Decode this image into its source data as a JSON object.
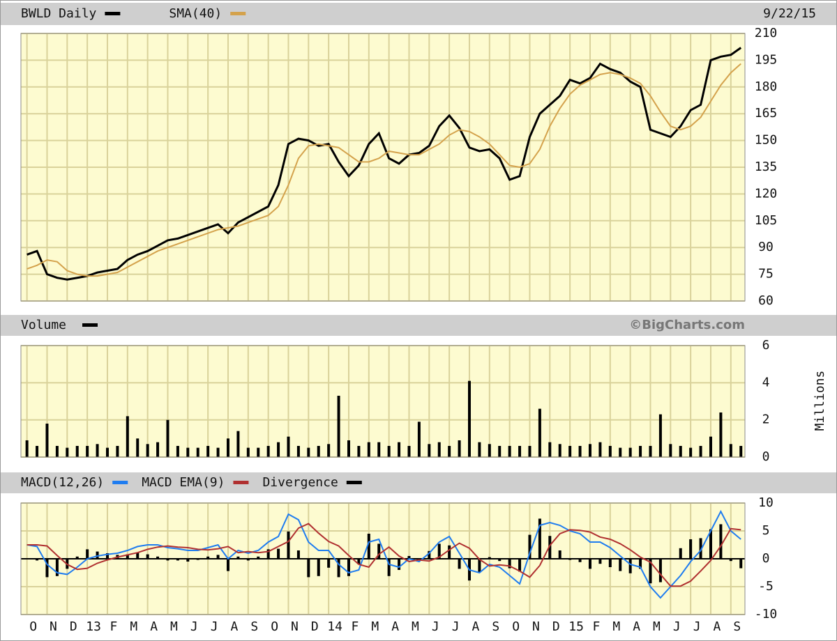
{
  "chart_data": [
    {
      "type": "line",
      "title": "BWLD Daily",
      "date": "9/22/15",
      "x": [
        0,
        0.5,
        1,
        1.5,
        2,
        2.5,
        3,
        3.5,
        4,
        4.5,
        5,
        5.5,
        6,
        6.5,
        7,
        7.5,
        8,
        8.5,
        9,
        9.5,
        10,
        10.5,
        11,
        11.5,
        12,
        12.5,
        13,
        13.5,
        14,
        14.5,
        15,
        15.5,
        16,
        16.5,
        17,
        17.5,
        18,
        18.5,
        19,
        19.5,
        20,
        20.5,
        21,
        21.5,
        22,
        22.5,
        23,
        23.5,
        24,
        24.5,
        25,
        25.5,
        26,
        26.5,
        27,
        27.5,
        28,
        28.5,
        29,
        29.5,
        30,
        30.5,
        31,
        31.5,
        32,
        32.5,
        33,
        33.5,
        34,
        34.5,
        35,
        35.5
      ],
      "xlim": [
        -0.3,
        35.7
      ],
      "ylim": [
        60,
        210
      ],
      "yticks": [
        60,
        75,
        90,
        105,
        120,
        135,
        150,
        165,
        180,
        195,
        210
      ],
      "grid": true,
      "series": [
        {
          "name": "BWLD Daily",
          "color": "#000000",
          "values": [
            86,
            88,
            75,
            73,
            72,
            73,
            74,
            76,
            77,
            78,
            83,
            86,
            88,
            91,
            94,
            95,
            97,
            99,
            101,
            103,
            98,
            104,
            107,
            110,
            113,
            125,
            148,
            151,
            150,
            147,
            148,
            138,
            130,
            136,
            148,
            154,
            140,
            137,
            142,
            143,
            147,
            158,
            164,
            157,
            146,
            144,
            145,
            140,
            128,
            130,
            152,
            165,
            170,
            175,
            184,
            182,
            185,
            193,
            190,
            188,
            183,
            180,
            156,
            154,
            152,
            158,
            167,
            170,
            195,
            197,
            198,
            202
          ]
        },
        {
          "name": "SMA(40)",
          "color": "#d4a24c",
          "values": [
            78,
            80,
            83,
            82,
            77,
            75,
            74,
            74,
            75,
            76,
            79,
            82,
            85,
            88,
            90,
            92,
            94,
            96,
            98,
            100,
            101,
            102,
            104,
            106,
            108,
            113,
            125,
            140,
            147,
            148,
            147,
            146,
            142,
            138,
            138,
            140,
            144,
            143,
            142,
            142,
            145,
            148,
            153,
            156,
            155,
            152,
            148,
            142,
            136,
            135,
            137,
            145,
            158,
            168,
            176,
            181,
            184,
            187,
            188,
            187,
            185,
            182,
            175,
            166,
            158,
            156,
            158,
            163,
            172,
            181,
            188,
            193
          ]
        }
      ]
    },
    {
      "type": "bar",
      "title": "Volume",
      "source": "©BigCharts.com",
      "ylabel": "Millions",
      "x": [
        0,
        0.5,
        1,
        1.5,
        2,
        2.5,
        3,
        3.5,
        4,
        4.5,
        5,
        5.5,
        6,
        6.5,
        7,
        7.5,
        8,
        8.5,
        9,
        9.5,
        10,
        10.5,
        11,
        11.5,
        12,
        12.5,
        13,
        13.5,
        14,
        14.5,
        15,
        15.5,
        16,
        16.5,
        17,
        17.5,
        18,
        18.5,
        19,
        19.5,
        20,
        20.5,
        21,
        21.5,
        22,
        22.5,
        23,
        23.5,
        24,
        24.5,
        25,
        25.5,
        26,
        26.5,
        27,
        27.5,
        28,
        28.5,
        29,
        29.5,
        30,
        30.5,
        31,
        31.5,
        32,
        32.5,
        33,
        33.5,
        34,
        34.5,
        35,
        35.5
      ],
      "xlim": [
        -0.3,
        35.7
      ],
      "ylim": [
        0,
        6
      ],
      "yticks": [
        0,
        2,
        4,
        6
      ],
      "grid": true,
      "series": [
        {
          "name": "Volume",
          "color": "#000000",
          "values": [
            0.9,
            0.6,
            1.8,
            0.6,
            0.5,
            0.6,
            0.6,
            0.7,
            0.5,
            0.6,
            2.2,
            1.0,
            0.7,
            0.8,
            2.0,
            0.6,
            0.5,
            0.5,
            0.6,
            0.5,
            1.0,
            1.4,
            0.5,
            0.5,
            0.6,
            0.8,
            1.1,
            0.6,
            0.5,
            0.6,
            0.7,
            3.3,
            0.9,
            0.6,
            0.8,
            0.8,
            0.6,
            0.8,
            0.6,
            1.9,
            0.7,
            0.8,
            0.6,
            0.9,
            4.1,
            0.8,
            0.7,
            0.6,
            0.6,
            0.6,
            0.6,
            2.6,
            0.8,
            0.7,
            0.6,
            0.6,
            0.7,
            0.8,
            0.6,
            0.5,
            0.5,
            0.6,
            0.6,
            2.3,
            0.7,
            0.6,
            0.5,
            0.6,
            1.1,
            2.4,
            0.7,
            0.6
          ]
        }
      ]
    },
    {
      "type": "line",
      "x": [
        0,
        0.5,
        1,
        1.5,
        2,
        2.5,
        3,
        3.5,
        4,
        4.5,
        5,
        5.5,
        6,
        6.5,
        7,
        7.5,
        8,
        8.5,
        9,
        9.5,
        10,
        10.5,
        11,
        11.5,
        12,
        12.5,
        13,
        13.5,
        14,
        14.5,
        15,
        15.5,
        16,
        16.5,
        17,
        17.5,
        18,
        18.5,
        19,
        19.5,
        20,
        20.5,
        21,
        21.5,
        22,
        22.5,
        23,
        23.5,
        24,
        24.5,
        25,
        25.5,
        26,
        26.5,
        27,
        27.5,
        28,
        28.5,
        29,
        29.5,
        30,
        30.5,
        31,
        31.5,
        32,
        32.5,
        33,
        33.5,
        34,
        34.5,
        35,
        35.5
      ],
      "xlim": [
        -0.3,
        35.7
      ],
      "ylim": [
        -10,
        10
      ],
      "yticks": [
        -10,
        -5,
        0,
        5,
        10
      ],
      "grid": true,
      "xticks": [
        {
          "value": 0,
          "label": "O"
        },
        {
          "value": 1,
          "label": "N"
        },
        {
          "value": 2,
          "label": "D"
        },
        {
          "value": 3,
          "label": "13"
        },
        {
          "value": 4,
          "label": "F"
        },
        {
          "value": 5,
          "label": "M"
        },
        {
          "value": 6,
          "label": "A"
        },
        {
          "value": 7,
          "label": "M"
        },
        {
          "value": 8,
          "label": "J"
        },
        {
          "value": 9,
          "label": "J"
        },
        {
          "value": 10,
          "label": "A"
        },
        {
          "value": 11,
          "label": "S"
        },
        {
          "value": 12,
          "label": "O"
        },
        {
          "value": 13,
          "label": "N"
        },
        {
          "value": 14,
          "label": "D"
        },
        {
          "value": 15,
          "label": "14"
        },
        {
          "value": 16,
          "label": "F"
        },
        {
          "value": 17,
          "label": "M"
        },
        {
          "value": 18,
          "label": "A"
        },
        {
          "value": 19,
          "label": "M"
        },
        {
          "value": 20,
          "label": "J"
        },
        {
          "value": 21,
          "label": "J"
        },
        {
          "value": 22,
          "label": "A"
        },
        {
          "value": 23,
          "label": "S"
        },
        {
          "value": 24,
          "label": "O"
        },
        {
          "value": 25,
          "label": "N"
        },
        {
          "value": 26,
          "label": "D"
        },
        {
          "value": 27,
          "label": "15"
        },
        {
          "value": 28,
          "label": "F"
        },
        {
          "value": 29,
          "label": "M"
        },
        {
          "value": 30,
          "label": "A"
        },
        {
          "value": 31,
          "label": "M"
        },
        {
          "value": 32,
          "label": "J"
        },
        {
          "value": 33,
          "label": "J"
        },
        {
          "value": 34,
          "label": "A"
        },
        {
          "value": 35,
          "label": "S"
        }
      ],
      "series": [
        {
          "name": "MACD(12,26)",
          "color": "#1e7cf0",
          "values": [
            2.5,
            2.2,
            -1,
            -2.5,
            -2.8,
            -1.5,
            0,
            0.5,
            0.8,
            1,
            1.5,
            2.2,
            2.5,
            2.5,
            2,
            1.8,
            1.5,
            1.5,
            2,
            2.5,
            0,
            1.5,
            1,
            1.5,
            3,
            4,
            8,
            7,
            3,
            1.5,
            1.5,
            -1,
            -2.5,
            -2,
            3,
            3.5,
            -1,
            -1.5,
            0,
            -0.5,
            1,
            3,
            4,
            1,
            -2,
            -2.5,
            -1,
            -1.5,
            -3,
            -4.5,
            1,
            6,
            6.5,
            6,
            5,
            4.5,
            3,
            3,
            2,
            0.5,
            -1,
            -1.5,
            -5,
            -7,
            -5,
            -3,
            -0.5,
            1.5,
            5,
            8.5,
            5,
            3.5
          ]
        },
        {
          "name": "MACD EMA(9)",
          "color": "#b03030",
          "values": [
            2.5,
            2.5,
            2.3,
            0.6,
            -1.0,
            -1.9,
            -1.7,
            -0.8,
            -0.2,
            0.3,
            0.7,
            1.1,
            1.7,
            2.1,
            2.3,
            2.1,
            2.0,
            1.7,
            1.6,
            1.8,
            2.2,
            1.1,
            1.3,
            1.1,
            1.3,
            2.2,
            3.1,
            5.5,
            6.3,
            4.6,
            3.1,
            2.3,
            0.6,
            -1.0,
            -1.5,
            0.8,
            2.1,
            0.5,
            -0.5,
            -0.2,
            -0.4,
            0.3,
            1.6,
            2.8,
            1.9,
            -0.1,
            -1.3,
            -1.1,
            -1.3,
            -2.2,
            -3.3,
            -1.2,
            2.4,
            4.5,
            5.2,
            5.1,
            4.8,
            3.9,
            3.5,
            2.7,
            1.6,
            0.3,
            -0.6,
            -2.8,
            -4.9,
            -4.9,
            -4.0,
            -2.2,
            -0.3,
            2.3,
            5.4,
            5.2
          ]
        },
        {
          "name": "Divergence",
          "color": "#000000",
          "type": "bar",
          "values": [
            0,
            -0.3,
            -3.3,
            -3.1,
            -1.8,
            0.4,
            1.7,
            1.3,
            1.0,
            0.7,
            0.8,
            1.1,
            0.8,
            0.4,
            -0.3,
            -0.3,
            -0.5,
            -0.2,
            0.4,
            0.7,
            -2.2,
            0.4,
            -0.3,
            0.4,
            1.7,
            1.8,
            4.9,
            1.5,
            -3.3,
            -3.1,
            -1.6,
            -3.3,
            -3.1,
            -1.0,
            4.5,
            2.7,
            -3.1,
            -2.0,
            0.5,
            -0.3,
            1.4,
            2.7,
            2.4,
            -1.8,
            -3.9,
            -2.4,
            0.3,
            -0.4,
            -1.7,
            -2.3,
            4.3,
            7.2,
            4.1,
            1.5,
            -0.2,
            -0.6,
            -1.8,
            -0.9,
            -1.5,
            -2.2,
            -2.6,
            -1.8,
            -4.4,
            -4.2,
            -0.1,
            1.9,
            3.5,
            3.7,
            5.3,
            6.2,
            -0.4,
            -1.7
          ]
        }
      ]
    }
  ]
}
